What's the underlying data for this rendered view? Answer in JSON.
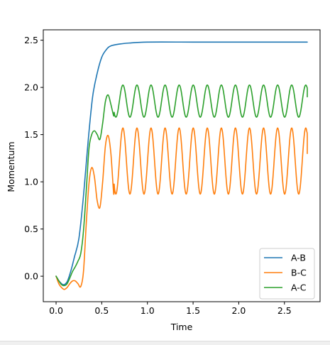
{
  "chart_data": {
    "type": "line",
    "title": "",
    "xlabel": "Time",
    "ylabel": "Momentum",
    "xlim": [
      -0.14,
      2.89
    ],
    "ylim": [
      -0.27,
      2.61
    ],
    "xticks": [
      0.0,
      0.5,
      1.0,
      1.5,
      2.0,
      2.5
    ],
    "xtick_labels": [
      "0.0",
      "0.5",
      "1.0",
      "1.5",
      "2.0",
      "2.5"
    ],
    "yticks": [
      0.0,
      0.5,
      1.0,
      1.5,
      2.0,
      2.5
    ],
    "ytick_labels": [
      "0.0",
      "0.5",
      "1.0",
      "1.5",
      "2.0",
      "2.5"
    ],
    "legend_position": "lower-right",
    "grid": false,
    "series": [
      {
        "name": "A-B",
        "color": "#1f77b4",
        "x": [
          0.0,
          0.04,
          0.08,
          0.12,
          0.16,
          0.2,
          0.25,
          0.3,
          0.35,
          0.4,
          0.45,
          0.5,
          0.55,
          0.6,
          0.7,
          0.8,
          1.0,
          1.5,
          2.0,
          2.75
        ],
        "y": [
          0.0,
          -0.06,
          -0.09,
          -0.06,
          0.05,
          0.2,
          0.4,
          0.85,
          1.42,
          1.9,
          2.15,
          2.32,
          2.4,
          2.44,
          2.46,
          2.47,
          2.48,
          2.48,
          2.48,
          2.48
        ]
      },
      {
        "name": "B-C",
        "color": "#ff7f0e",
        "x": [
          0.0,
          0.03,
          0.06,
          0.09,
          0.12,
          0.15,
          0.18,
          0.21,
          0.24,
          0.27,
          0.3,
          0.33,
          0.36,
          0.39,
          0.42,
          0.45,
          0.48,
          0.51,
          0.54,
          0.57,
          0.6,
          0.63
        ],
        "y": [
          0.0,
          -0.08,
          -0.12,
          -0.14,
          -0.12,
          -0.08,
          -0.05,
          -0.05,
          -0.08,
          -0.11,
          0.05,
          0.55,
          0.98,
          1.15,
          1.05,
          0.8,
          0.73,
          1.0,
          1.38,
          1.49,
          1.3,
          0.88
        ],
        "oscillation": {
          "start": 0.6,
          "end": 2.75,
          "center": 1.22,
          "amplitude": 0.35,
          "period": 0.154,
          "phase_ref": 0.5775
        },
        "end_value": 1.3
      },
      {
        "name": "A-C",
        "color": "#2ca02c",
        "x": [
          0.0,
          0.03,
          0.06,
          0.09,
          0.12,
          0.15,
          0.18,
          0.21,
          0.24,
          0.27,
          0.3,
          0.33,
          0.36,
          0.39,
          0.42,
          0.45,
          0.48,
          0.51,
          0.54,
          0.57,
          0.6,
          0.63
        ],
        "y": [
          0.0,
          -0.05,
          -0.09,
          -0.1,
          -0.08,
          -0.02,
          0.05,
          0.1,
          0.16,
          0.24,
          0.48,
          0.9,
          1.35,
          1.5,
          1.54,
          1.5,
          1.45,
          1.62,
          1.85,
          1.92,
          1.82,
          1.7
        ],
        "oscillation": {
          "start": 0.6,
          "end": 2.75,
          "center": 1.855,
          "amplitude": 0.17,
          "period": 0.154,
          "phase_ref": 0.5775
        },
        "end_value": 1.9
      }
    ]
  }
}
